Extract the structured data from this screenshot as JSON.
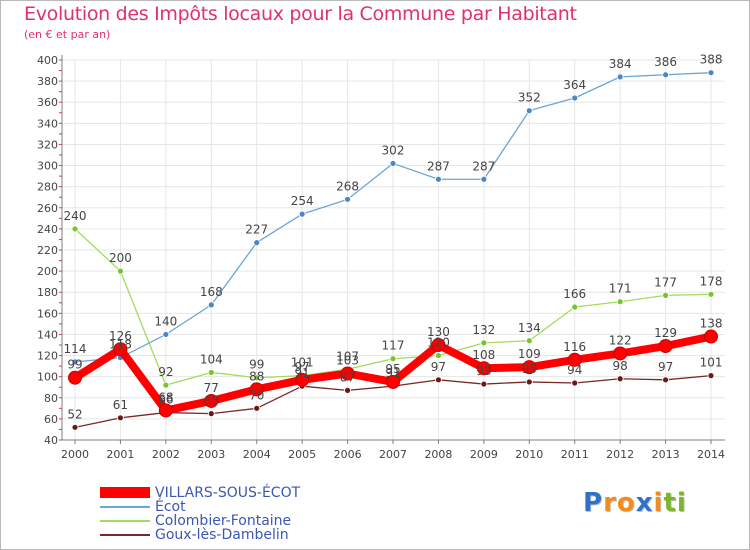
{
  "title": "Evolution des Impôts locaux pour la Commune par Habitant",
  "subtitle": "(en € et par an)",
  "logo": {
    "text": "Proxiti",
    "letters": [
      "P",
      "r",
      "o",
      "x",
      "i",
      "t",
      "i"
    ],
    "colors": [
      "#2f73c8",
      "#f28c1c",
      "#f28c1c",
      "#2f73c8",
      "#f28c1c",
      "#7ab829",
      "#7ab829"
    ]
  },
  "colors": {
    "title": "#e0306d",
    "grid": "#e6e6e6",
    "axis": "#7f7f7f",
    "axis_tick_red": "#e0306d",
    "label": "#444444",
    "legend_text": "#3b57b3"
  },
  "chart_data": {
    "type": "line",
    "title": "Evolution des Impôts locaux pour la Commune par Habitant",
    "subtitle": "(en € et par an)",
    "xlabel": "",
    "ylabel": "",
    "x": [
      "2000",
      "2001",
      "2002",
      "2003",
      "2004",
      "2005",
      "2006",
      "2007",
      "2008",
      "2009",
      "2010",
      "2011",
      "2012",
      "2013",
      "2014"
    ],
    "ylim": [
      40,
      400
    ],
    "yticks": [
      40,
      60,
      80,
      100,
      120,
      140,
      160,
      180,
      200,
      220,
      240,
      260,
      280,
      300,
      320,
      340,
      360,
      380,
      400
    ],
    "grid": true,
    "legend_position": "bottom-left",
    "series": [
      {
        "name": "VILLARS-SOUS-ÉCOT",
        "color": "#ff0000",
        "marker_edge": "#cc0000",
        "thick": true,
        "values": [
          99,
          126,
          68,
          77,
          88,
          97,
          103,
          95,
          130,
          108,
          109,
          116,
          122,
          129,
          138
        ],
        "labels": [
          "99",
          "126",
          "68",
          "77",
          "88",
          "97",
          "103",
          "95",
          "130",
          "108",
          "109",
          "116",
          "122",
          "129",
          "138"
        ]
      },
      {
        "name": "Écot",
        "color": "#6aa6d8",
        "marker_color": "#4a86c8",
        "thick": false,
        "values": [
          114,
          118,
          140,
          168,
          227,
          254,
          268,
          302,
          287,
          287,
          352,
          364,
          384,
          386,
          388
        ],
        "labels": [
          "114",
          "118",
          "140",
          "168",
          "227",
          "254",
          "268",
          "302",
          "287",
          "287",
          "352",
          "364",
          "384",
          "386",
          "388"
        ]
      },
      {
        "name": "Colombier-Fontaine",
        "color": "#9fdd5a",
        "marker_color": "#77c52e",
        "thick": false,
        "values": [
          240,
          200,
          92,
          104,
          99,
          101,
          107,
          117,
          120,
          132,
          134,
          166,
          171,
          177,
          178
        ],
        "labels": [
          "240",
          "200",
          "92",
          "104",
          "99",
          "101",
          "107",
          "117",
          "120",
          "132",
          "134",
          "166",
          "171",
          "177",
          "178"
        ]
      },
      {
        "name": "Goux-lès-Dambelin",
        "color": "#7a2828",
        "marker_color": "#6a1818",
        "thick": false,
        "values": [
          52,
          61,
          66,
          65,
          70,
          91,
          87,
          91,
          97,
          93,
          95,
          94,
          98,
          97,
          101
        ],
        "labels": [
          "52",
          "61",
          "66",
          "65",
          "70",
          "91",
          "87",
          "91",
          "97",
          "93",
          "95",
          "94",
          "98",
          "97",
          "101"
        ]
      }
    ]
  }
}
